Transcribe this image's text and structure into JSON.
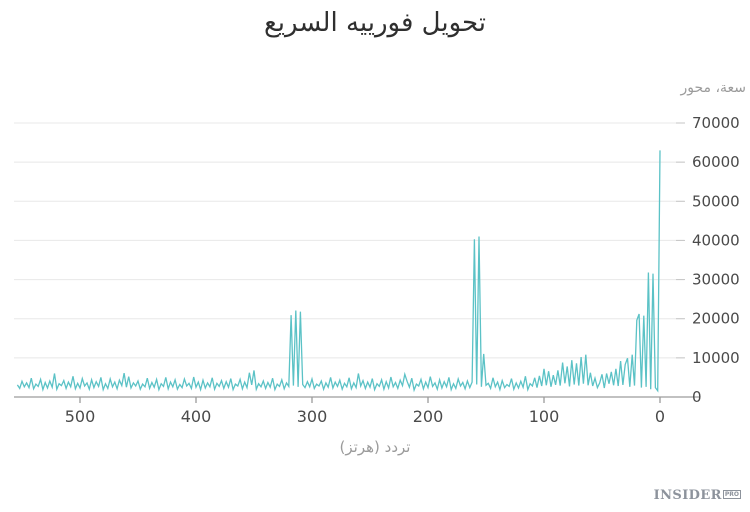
{
  "watermark": {
    "brand": "INSIDER",
    "suffix": "PRO"
  },
  "chart_data": {
    "type": "line",
    "title": "تحويل فورييه السريع",
    "xlabel": "تردد (هرتز)",
    "ylabel": "سعة، محور",
    "x_axis_reversed": true,
    "xlim": [
      0,
      560
    ],
    "ylim": [
      0,
      70000
    ],
    "xticks": [
      500,
      400,
      300,
      200,
      100,
      0
    ],
    "yticks": [
      0,
      10000,
      20000,
      30000,
      40000,
      50000,
      60000,
      70000
    ],
    "grid": true,
    "legend": "none",
    "color": "#5bc2c6",
    "background": "#ffffff",
    "x_start": 0,
    "x_step": 2,
    "x_unit": "Hz",
    "peaks": [
      {
        "freq": 0,
        "amplitude": 63000
      },
      {
        "freq": 6,
        "amplitude": 31500
      },
      {
        "freq": 10,
        "amplitude": 31800
      },
      {
        "freq": 14,
        "amplitude": 20800
      },
      {
        "freq": 18,
        "amplitude": 21200
      },
      {
        "freq": 156,
        "amplitude": 41000
      },
      {
        "freq": 160,
        "amplitude": 40300
      },
      {
        "freq": 310,
        "amplitude": 21800
      },
      {
        "freq": 314,
        "amplitude": 22100
      }
    ],
    "values": [
      63000,
      1600,
      2400,
      31500,
      2000,
      31800,
      2600,
      20800,
      2400,
      21200,
      19600,
      2900,
      10800,
      2600,
      9900,
      8300,
      3100,
      9200,
      2800,
      7200,
      3000,
      6400,
      3400,
      6000,
      2300,
      5800,
      3600,
      2400,
      4800,
      2800,
      6200,
      3000,
      10800,
      3400,
      10200,
      2900,
      8600,
      3200,
      9400,
      2700,
      7800,
      3500,
      8800,
      2900,
      6800,
      3100,
      5600,
      2600,
      6600,
      3000,
      7200,
      2800,
      5400,
      2400,
      4900,
      2800,
      3400,
      1900,
      5300,
      2500,
      4000,
      2300,
      3600,
      2000,
      4700,
      2700,
      3200,
      2400,
      4200,
      1900,
      3800,
      2600,
      4900,
      2200,
      3500,
      3000,
      11000,
      2600,
      41000,
      3200,
      40300,
      3800,
      2400,
      4100,
      2100,
      3700,
      2800,
      4600,
      2200,
      3400,
      1900,
      5000,
      2600,
      3900,
      2300,
      4400,
      2000,
      3600,
      2700,
      5200,
      2400,
      3800,
      2100,
      4500,
      2800,
      3300,
      1800,
      4800,
      2500,
      4000,
      5800,
      2900,
      4300,
      2200,
      3700,
      2600,
      5100,
      2300,
      3900,
      2000,
      4400,
      2700,
      3400,
      1900,
      4700,
      2500,
      3800,
      2200,
      4200,
      2800,
      6000,
      2400,
      3600,
      2100,
      4900,
      2600,
      3500,
      2000,
      4300,
      2700,
      3800,
      2300,
      5000,
      2500,
      3600,
      2000,
      4100,
      2800,
      3300,
      2200,
      4600,
      2600,
      3900,
      2400,
      3200,
      21800,
      2600,
      22100,
      2900,
      20900,
      2700,
      3600,
      2100,
      4400,
      2700,
      3300,
      1900,
      4800,
      2500,
      3700,
      2200,
      4100,
      2600,
      3400,
      2000,
      6800,
      3100,
      6200,
      2400,
      3800,
      2100,
      4500,
      2800,
      3300,
      1900,
      4700,
      2500,
      3900,
      2200,
      4200,
      2700,
      3500,
      2000,
      4900,
      2600,
      3600,
      2300,
      4300,
      1900,
      3800,
      2500,
      5100,
      2200,
      3500,
      2800,
      4600,
      2400,
      3200,
      2000,
      4400,
      2600,
      3800,
      2100,
      5000,
      2700,
      3400,
      1900,
      4500,
      2500,
      3700,
      2200,
      4800,
      2600,
      3300,
      2000,
      4100,
      2800,
      3600,
      2300,
      5200,
      2500,
      6100,
      2900,
      4300,
      2100,
      3800,
      2600,
      4600,
      2200,
      3400,
      1900,
      5000,
      2700,
      3900,
      2400,
      4400,
      2000,
      3600,
      2800,
      4700,
      2300,
      3500,
      2100,
      5300,
      2600,
      3800,
      2200,
      4200,
      2900,
      3400,
      2000,
      6000,
      2500,
      4100,
      2300,
      3700,
      1900,
      4500,
      2700,
      3300,
      2100,
      4800,
      2400,
      3600,
      2600,
      4000,
      2200,
      3100
    ]
  }
}
